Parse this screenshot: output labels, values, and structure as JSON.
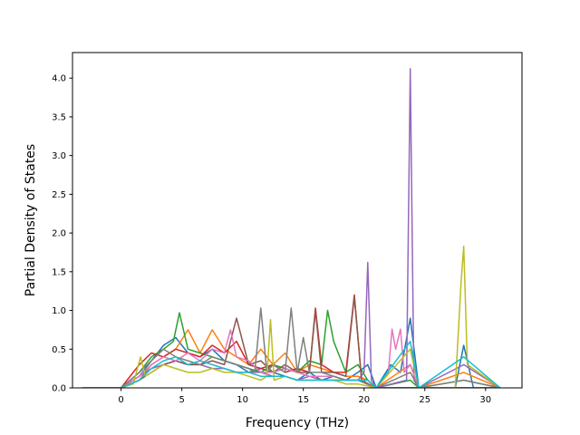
{
  "chart_data": {
    "type": "line",
    "title": "",
    "xlabel": "Frequency (THz)",
    "ylabel": "Partial Density of States",
    "xlim": [
      -4,
      33
    ],
    "ylim": [
      0,
      4.33
    ],
    "xticks": [
      0,
      5,
      10,
      15,
      20,
      25,
      30
    ],
    "yticks": [
      0.0,
      0.5,
      1.0,
      1.5,
      2.0,
      2.5,
      3.0,
      3.5,
      4.0
    ],
    "ytick_labels": [
      "0.0",
      "0.5",
      "1.0",
      "1.5",
      "2.0",
      "2.5",
      "3.0",
      "3.5",
      "4.0"
    ],
    "grid": false,
    "legend": "none",
    "colors": [
      "#1f77b4",
      "#ff7f0e",
      "#2ca02c",
      "#d62728",
      "#9467bd",
      "#8c564b",
      "#e377c2",
      "#7f7f7f",
      "#bcbd22",
      "#17becf"
    ],
    "series": [
      {
        "x": [
          -3.2,
          0,
          1.5,
          2.5,
          3.5,
          4.5,
          5.5,
          6.5,
          7.5,
          8.5,
          9.5,
          10.5,
          11.5,
          12.5,
          13.5,
          14.5,
          15.5,
          16.5,
          17.5,
          18.5,
          19.5,
          20.3,
          21.0,
          22.2,
          23.0,
          23.8,
          24.5,
          27.5,
          28.2,
          29.0,
          31.2
        ],
        "y": [
          0,
          0,
          0.15,
          0.35,
          0.55,
          0.65,
          0.45,
          0.4,
          0.5,
          0.35,
          0.3,
          0.2,
          0.25,
          0.2,
          0.15,
          0.1,
          0.2,
          0.1,
          0.15,
          0.1,
          0.2,
          0.3,
          0,
          0.3,
          0.2,
          0.9,
          0,
          0,
          0.55,
          0,
          0
        ]
      },
      {
        "x": [
          -3.2,
          0,
          1.5,
          2.5,
          3.5,
          4.5,
          5.5,
          6.5,
          7.5,
          8.5,
          9.5,
          10.5,
          11.5,
          12.5,
          13.5,
          14.5,
          15.5,
          16.5,
          17.5,
          18.5,
          19.5,
          20.3,
          21.0,
          23.8,
          24.5,
          28.2,
          31.2
        ],
        "y": [
          0,
          0,
          0.1,
          0.3,
          0.4,
          0.5,
          0.75,
          0.45,
          0.75,
          0.5,
          0.4,
          0.3,
          0.5,
          0.3,
          0.45,
          0.2,
          0.3,
          0.25,
          0.2,
          0.15,
          0.15,
          0.1,
          0,
          0.3,
          0,
          0.2,
          0
        ]
      },
      {
        "x": [
          -3.2,
          0,
          1.5,
          2.5,
          3.5,
          4.3,
          4.8,
          5.5,
          6.5,
          7.5,
          8.5,
          9.5,
          10.5,
          11.5,
          12.5,
          13.5,
          14.5,
          15.5,
          16.5,
          17.0,
          17.5,
          18.5,
          19.5,
          20.3,
          21.0,
          23.8,
          24.5,
          28.2,
          31.2
        ],
        "y": [
          0,
          0,
          0.2,
          0.4,
          0.5,
          0.6,
          0.97,
          0.5,
          0.45,
          0.4,
          0.35,
          0.3,
          0.25,
          0.2,
          0.3,
          0.25,
          0.2,
          0.35,
          0.3,
          1.0,
          0.6,
          0.2,
          0.3,
          0.1,
          0,
          0.1,
          0,
          0.1,
          0
        ]
      },
      {
        "x": [
          -3.2,
          0,
          1.5,
          2.5,
          3.5,
          4.5,
          5.5,
          6.5,
          7.5,
          8.5,
          9.5,
          10.5,
          11.5,
          12.5,
          13.5,
          14.5,
          15.5,
          16.0,
          16.5,
          17.5,
          18.5,
          19.2,
          19.8,
          20.3,
          21.0,
          31.2
        ],
        "y": [
          0,
          0,
          0.3,
          0.45,
          0.4,
          0.5,
          0.45,
          0.4,
          0.55,
          0.45,
          0.6,
          0.3,
          0.25,
          0.3,
          0.2,
          0.25,
          0.2,
          1.03,
          0.3,
          0.2,
          0.2,
          1.2,
          0.1,
          0.1,
          0,
          0
        ]
      },
      {
        "x": [
          -3.2,
          0,
          1.5,
          2.5,
          3.5,
          4.5,
          5.5,
          6.5,
          7.5,
          8.5,
          9.5,
          10.5,
          11.5,
          12.5,
          13.5,
          14.5,
          15.5,
          16.5,
          17.5,
          18.5,
          19.5,
          20.0,
          20.3,
          20.6,
          21.0,
          23.5,
          23.8,
          24.1,
          24.5,
          28.2,
          31.2
        ],
        "y": [
          0,
          0,
          0.15,
          0.25,
          0.3,
          0.35,
          0.3,
          0.3,
          0.25,
          0.25,
          0.2,
          0.2,
          0.2,
          0.15,
          0.15,
          0.1,
          0.15,
          0.1,
          0.1,
          0.1,
          0.1,
          0.2,
          1.62,
          0.1,
          0,
          0.1,
          4.12,
          0.1,
          0,
          0.3,
          0
        ]
      },
      {
        "x": [
          -3.2,
          0,
          1.5,
          2.5,
          3.5,
          4.5,
          5.5,
          6.5,
          7.5,
          8.5,
          9.5,
          10.5,
          11.5,
          12.5,
          13.5,
          14.5,
          15.5,
          16.0,
          16.5,
          17.5,
          18.5,
          19.2,
          19.8,
          21.0,
          31.2
        ],
        "y": [
          0,
          0,
          0.1,
          0.2,
          0.3,
          0.35,
          0.3,
          0.3,
          0.35,
          0.3,
          0.9,
          0.3,
          0.35,
          0.2,
          0.3,
          0.2,
          0.2,
          1.0,
          0.2,
          0.2,
          0.15,
          1.18,
          0.1,
          0,
          0
        ]
      },
      {
        "x": [
          -3.2,
          0,
          1.5,
          2.5,
          3.5,
          4.5,
          5.5,
          6.5,
          7.5,
          8.5,
          9.0,
          9.5,
          10.5,
          11.5,
          12.5,
          13.5,
          14.5,
          15.5,
          16.5,
          17.5,
          18.5,
          19.5,
          21.0,
          22.0,
          22.3,
          22.6,
          23.0,
          23.3,
          23.8,
          24.5,
          31.2
        ],
        "y": [
          0,
          0,
          0.15,
          0.3,
          0.4,
          0.35,
          0.45,
          0.35,
          0.5,
          0.45,
          0.75,
          0.4,
          0.35,
          0.2,
          0.2,
          0.25,
          0.2,
          0.15,
          0.15,
          0.15,
          0.1,
          0.1,
          0,
          0.2,
          0.76,
          0.5,
          0.76,
          0.2,
          0.3,
          0,
          0
        ]
      },
      {
        "x": [
          -3.2,
          0,
          1.5,
          2.5,
          3.5,
          4.5,
          5.5,
          6.5,
          7.5,
          8.5,
          9.5,
          10.5,
          11.0,
          11.5,
          12.0,
          12.5,
          13.5,
          14.0,
          14.5,
          15.0,
          15.5,
          16.5,
          17.5,
          18.5,
          19.5,
          21.0,
          23.8,
          24.5,
          28.2,
          31.2
        ],
        "y": [
          0,
          0,
          0.2,
          0.35,
          0.5,
          0.4,
          0.35,
          0.3,
          0.4,
          0.35,
          0.3,
          0.25,
          0.2,
          1.03,
          0.2,
          0.3,
          0.2,
          1.03,
          0.2,
          0.65,
          0.2,
          0.2,
          0.15,
          0.1,
          0.1,
          0,
          0.2,
          0,
          0.1,
          0
        ]
      },
      {
        "x": [
          -3.2,
          0,
          1.0,
          1.6,
          2.0,
          2.5,
          3.5,
          4.5,
          5.5,
          6.5,
          7.5,
          8.5,
          9.5,
          10.5,
          11.5,
          12.0,
          12.3,
          12.6,
          13.5,
          14.5,
          15.5,
          16.5,
          17.5,
          18.5,
          19.5,
          21.0,
          23.8,
          24.5,
          27.5,
          28.0,
          28.2,
          28.5,
          31.2
        ],
        "y": [
          0,
          0,
          0.05,
          0.4,
          0.15,
          0.2,
          0.3,
          0.25,
          0.2,
          0.2,
          0.25,
          0.2,
          0.2,
          0.15,
          0.1,
          0.15,
          0.88,
          0.1,
          0.15,
          0.1,
          0.1,
          0.1,
          0.1,
          0.05,
          0.05,
          0,
          0.5,
          0,
          0,
          1.4,
          1.83,
          0.3,
          0
        ]
      },
      {
        "x": [
          -3.2,
          0,
          1.5,
          2.5,
          3.5,
          4.5,
          5.5,
          6.5,
          7.5,
          8.5,
          9.5,
          10.5,
          11.5,
          12.5,
          13.5,
          14.5,
          15.5,
          16.5,
          17.5,
          18.5,
          19.5,
          20.3,
          21.0,
          23.8,
          24.5,
          28.2,
          31.2
        ],
        "y": [
          0,
          0,
          0.1,
          0.25,
          0.35,
          0.4,
          0.3,
          0.35,
          0.3,
          0.25,
          0.2,
          0.2,
          0.15,
          0.15,
          0.15,
          0.1,
          0.1,
          0.1,
          0.1,
          0.1,
          0.1,
          0.1,
          0,
          0.6,
          0,
          0.4,
          0
        ]
      }
    ]
  }
}
